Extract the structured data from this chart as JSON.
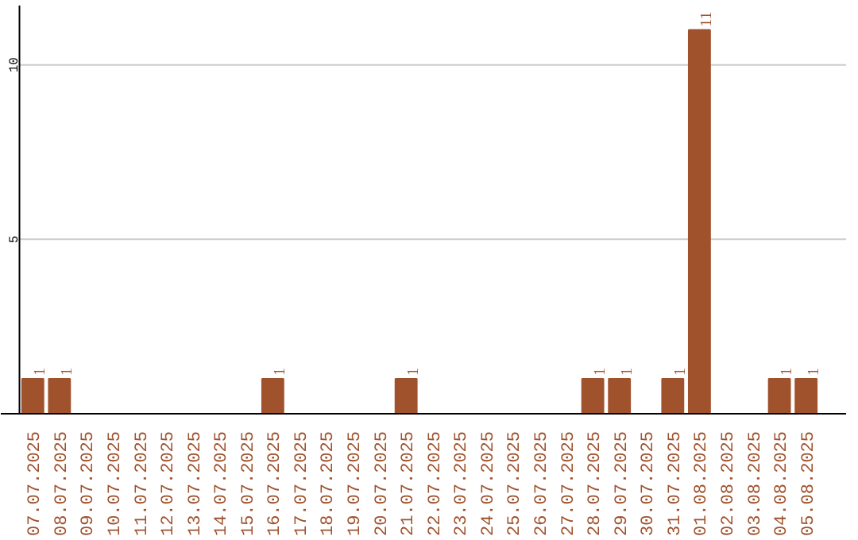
{
  "chart_data": {
    "type": "bar",
    "categories": [
      "07.07.2025",
      "08.07.2025",
      "09.07.2025",
      "10.07.2025",
      "11.07.2025",
      "12.07.2025",
      "13.07.2025",
      "14.07.2025",
      "15.07.2025",
      "16.07.2025",
      "17.07.2025",
      "18.07.2025",
      "19.07.2025",
      "20.07.2025",
      "21.07.2025",
      "22.07.2025",
      "23.07.2025",
      "24.07.2025",
      "25.07.2025",
      "26.07.2025",
      "27.07.2025",
      "28.07.2025",
      "29.07.2025",
      "30.07.2025",
      "31.07.2025",
      "01.08.2025",
      "02.08.2025",
      "03.08.2025",
      "04.08.2025",
      "05.08.2025"
    ],
    "values": [
      1,
      1,
      0,
      0,
      0,
      0,
      0,
      0,
      0,
      1,
      0,
      0,
      0,
      0,
      1,
      0,
      0,
      0,
      0,
      0,
      0,
      1,
      1,
      0,
      1,
      11,
      0,
      0,
      1,
      1
    ],
    "value_labels": [
      "1",
      "1",
      null,
      null,
      null,
      null,
      null,
      null,
      null,
      "1",
      null,
      null,
      null,
      null,
      "1",
      null,
      null,
      null,
      null,
      null,
      null,
      "1",
      "1",
      null,
      "1",
      "11",
      null,
      null,
      "1",
      "1"
    ],
    "color": "#a0522d",
    "ylim": [
      0,
      11.7
    ],
    "yticks": [
      5,
      10
    ],
    "grid": "y"
  }
}
